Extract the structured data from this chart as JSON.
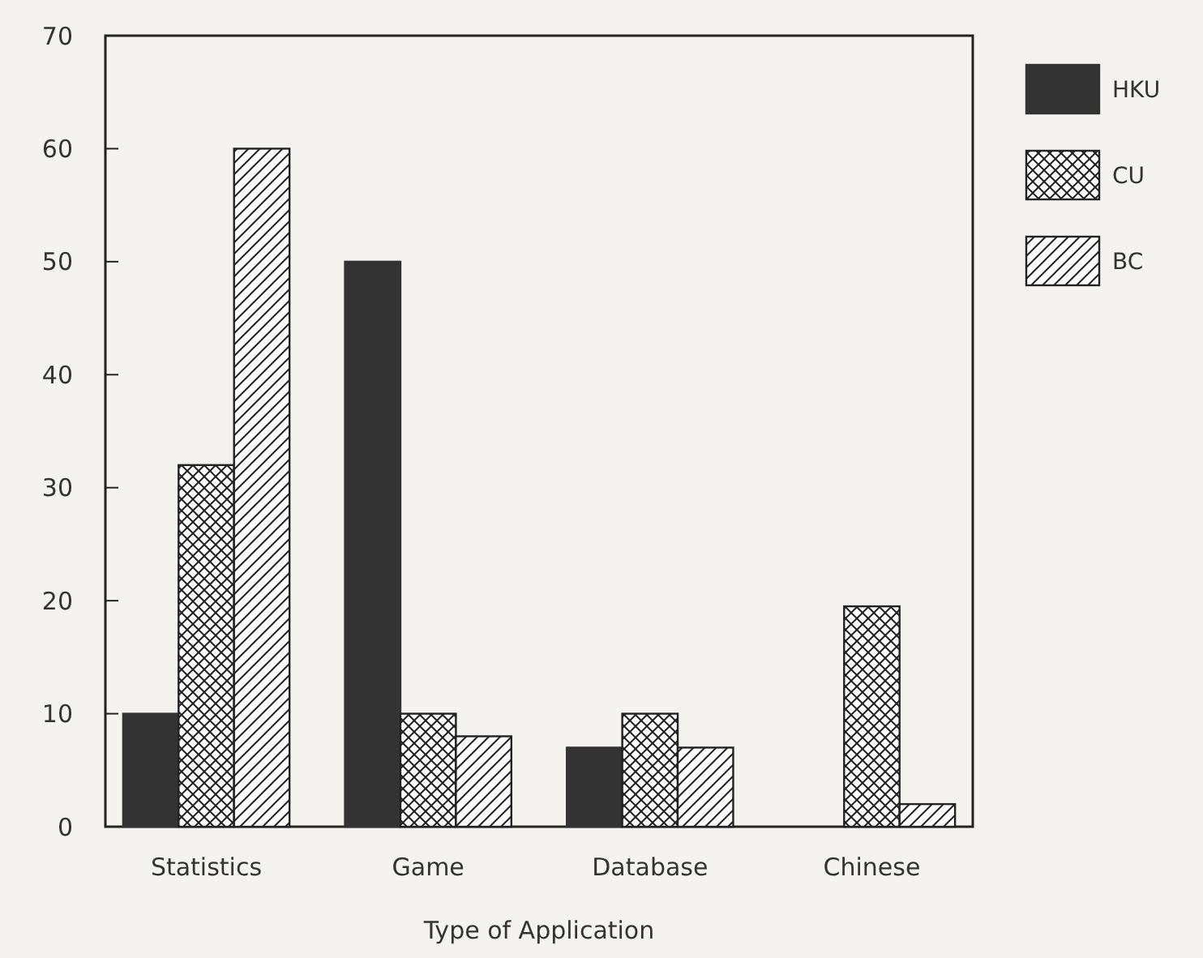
{
  "chart_data": {
    "type": "bar",
    "xlabel": "Type of Application",
    "categories": [
      "Statistics",
      "Game",
      "Database",
      "Chinese"
    ],
    "series": [
      {
        "name": "HKU",
        "color": "#333333",
        "values": [
          10,
          50,
          7,
          0
        ]
      },
      {
        "name": "CU",
        "color": "#222222",
        "values": [
          32,
          10,
          10,
          19.5
        ]
      },
      {
        "name": "BC",
        "color": "#222222",
        "values": [
          60,
          8,
          7,
          2
        ]
      }
    ],
    "ylim": [
      0,
      70
    ],
    "yticks": [
      0,
      10,
      20,
      30,
      40,
      50,
      60,
      70
    ],
    "grid": false,
    "legend": "top right"
  }
}
